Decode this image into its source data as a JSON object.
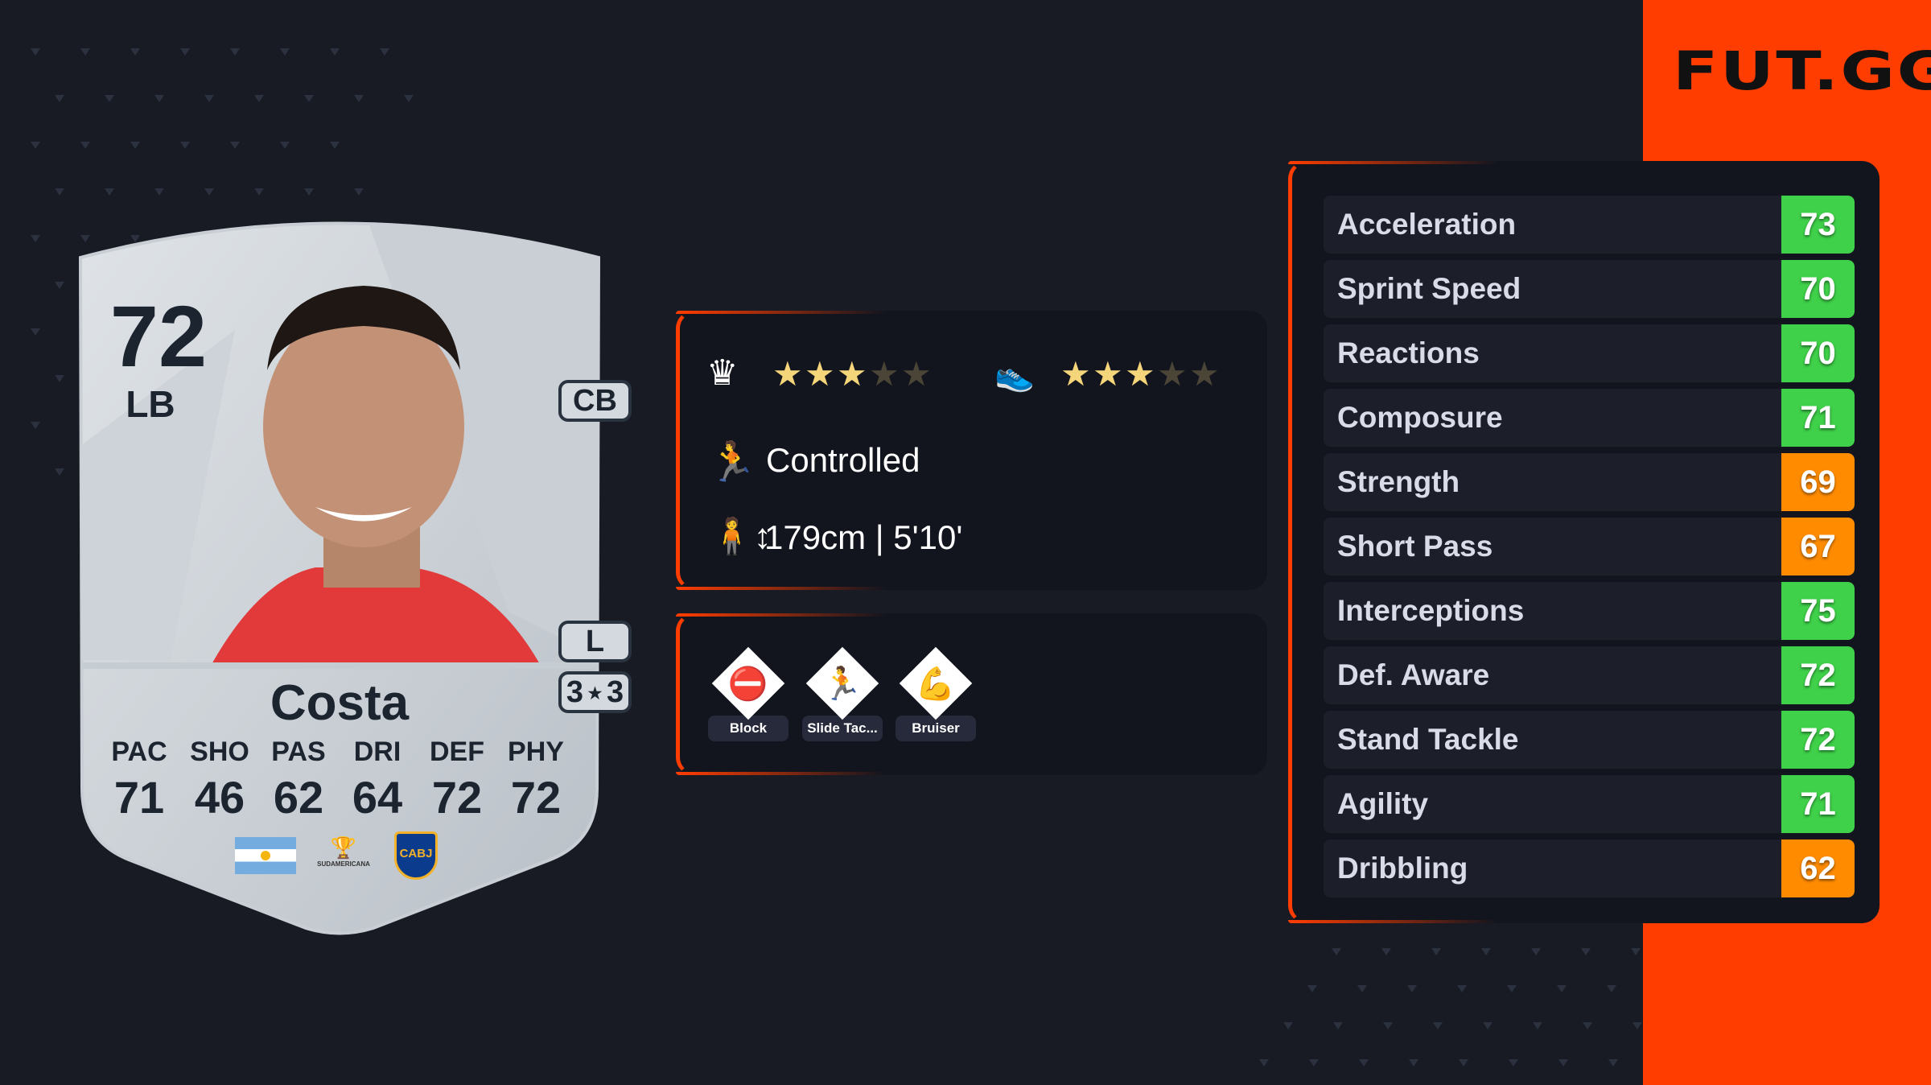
{
  "brand": {
    "logo": "FUT.GG",
    "accent": "#ff3d00"
  },
  "card": {
    "rating": "72",
    "position": "LB",
    "name": "Costa",
    "alt_positions": [
      "CB"
    ],
    "foot": "L",
    "skill_moves": "3",
    "weak_foot": "3",
    "face_stats": [
      {
        "label": "PAC",
        "value": "71"
      },
      {
        "label": "SHO",
        "value": "46"
      },
      {
        "label": "PAS",
        "value": "62"
      },
      {
        "label": "DRI",
        "value": "64"
      },
      {
        "label": "DEF",
        "value": "72"
      },
      {
        "label": "PHY",
        "value": "72"
      }
    ],
    "nation": "argentina-flag",
    "league": "Sudamericana",
    "league_logo_text": "SUDAMERICANA",
    "club": "CABJ"
  },
  "info": {
    "skill_moves_stars": 3,
    "weak_foot_stars": 3,
    "max_stars": 5,
    "skill_icon": "jester-hat-icon",
    "weak_foot_icon": "boot-icon",
    "accelerate": "Controlled",
    "height": "179cm | 5'10'"
  },
  "playstyles": [
    {
      "label": "Block",
      "icon": "barrier-icon"
    },
    {
      "label": "Slide Tac...",
      "icon": "slide-tackle-icon"
    },
    {
      "label": "Bruiser",
      "icon": "muscle-icon"
    }
  ],
  "attributes": [
    {
      "label": "Acceleration",
      "value": "73",
      "color": "#3fd14a"
    },
    {
      "label": "Sprint Speed",
      "value": "70",
      "color": "#3fd14a"
    },
    {
      "label": "Reactions",
      "value": "70",
      "color": "#3fd14a"
    },
    {
      "label": "Composure",
      "value": "71",
      "color": "#3fd14a"
    },
    {
      "label": "Strength",
      "value": "69",
      "color": "#ff8c00"
    },
    {
      "label": "Short Pass",
      "value": "67",
      "color": "#ff8c00"
    },
    {
      "label": "Interceptions",
      "value": "75",
      "color": "#3fd14a"
    },
    {
      "label": "Def. Aware",
      "value": "72",
      "color": "#3fd14a"
    },
    {
      "label": "Stand Tackle",
      "value": "72",
      "color": "#3fd14a"
    },
    {
      "label": "Agility",
      "value": "71",
      "color": "#3fd14a"
    },
    {
      "label": "Dribbling",
      "value": "62",
      "color": "#ff8c00"
    }
  ]
}
